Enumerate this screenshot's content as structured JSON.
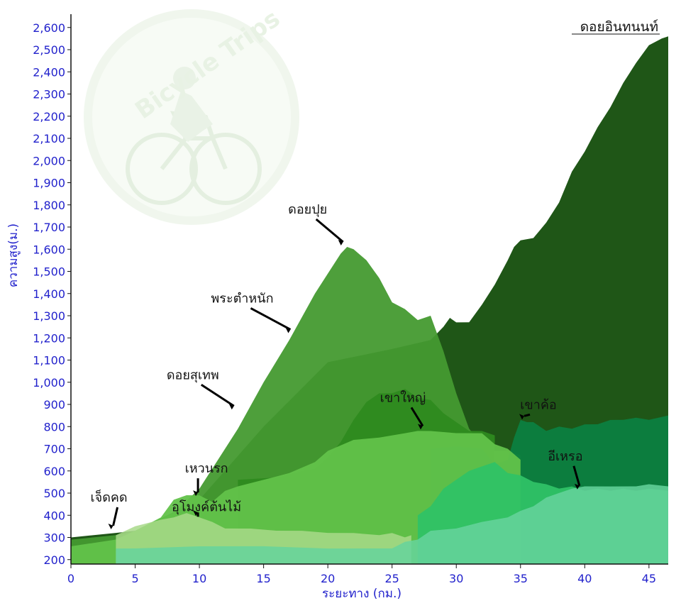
{
  "chart_data": {
    "type": "area",
    "title": "ดอยอินทนนท์",
    "xlabel": "ระยะทาง (กม.)",
    "ylabel": "ความสูง(ม.)",
    "xlim": [
      0,
      46.5
    ],
    "ylim": [
      180,
      2660
    ],
    "xticks": [
      0,
      5,
      10,
      15,
      20,
      25,
      30,
      35,
      40,
      45
    ],
    "yticks": [
      200,
      300,
      400,
      500,
      600,
      700,
      800,
      900,
      1000,
      1100,
      1200,
      1300,
      1400,
      1500,
      1600,
      1700,
      1800,
      1900,
      2000,
      2100,
      2200,
      2300,
      2400,
      2500,
      2600
    ],
    "watermark": "Bicycle Trips",
    "series": [
      {
        "color": "#134d0b",
        "x": [
          0,
          3.5,
          5,
          10,
          15,
          20,
          25,
          28,
          29,
          29.5,
          30,
          31,
          32,
          33,
          34,
          34.5,
          35,
          36,
          37,
          38,
          39,
          40,
          41,
          42,
          43,
          44,
          45,
          46,
          46.5
        ],
        "y": [
          300,
          330,
          330,
          480,
          800,
          1100,
          1150,
          1200,
          1250,
          1300,
          1270,
          1280,
          1350,
          1450,
          1550,
          1620,
          1640,
          1660,
          1720,
          1820,
          1950,
          2050,
          2150,
          2250,
          2350,
          2450,
          2520,
          2560,
          2560
        ]
      },
      {
        "color": "#449a30",
        "x": [
          0,
          3.5,
          5,
          8,
          10,
          13,
          15,
          17,
          19,
          20,
          21,
          21.5,
          22,
          23,
          24,
          25,
          26,
          27,
          28,
          29,
          30,
          31,
          32,
          33,
          34,
          35
        ],
        "y": [
          290,
          320,
          330,
          420,
          520,
          800,
          1000,
          1200,
          1400,
          1500,
          1580,
          1620,
          1600,
          1560,
          1470,
          1370,
          1330,
          1290,
          1300,
          1150,
          950,
          800,
          720,
          700,
          690,
          680
        ]
      },
      {
        "color": "#2e8a1f",
        "x": [
          13,
          16,
          18,
          19,
          20,
          21,
          22,
          23,
          24,
          25,
          26,
          27,
          28,
          29,
          30,
          31,
          32,
          33
        ],
        "y": [
          560,
          580,
          600,
          620,
          660,
          740,
          830,
          920,
          950,
          960,
          970,
          940,
          920,
          870,
          820,
          790,
          780,
          770
        ]
      },
      {
        "color": "#0c7f40",
        "x": [
          28,
          30,
          32,
          33,
          34,
          34.5,
          35,
          35.5,
          36,
          37,
          38,
          39,
          40,
          41,
          42,
          43,
          44,
          45,
          46.5
        ],
        "y": [
          700,
          720,
          700,
          640,
          650,
          760,
          830,
          830,
          820,
          790,
          800,
          800,
          810,
          820,
          830,
          840,
          840,
          840,
          850
        ]
      },
      {
        "color": "#62c24a",
        "x": [
          0,
          3.5,
          5,
          7,
          8,
          9,
          10,
          11,
          12,
          13,
          15,
          17,
          19,
          20,
          22,
          24,
          26,
          27,
          28,
          30,
          32,
          33,
          34,
          35
        ],
        "y": [
          260,
          300,
          330,
          400,
          470,
          500,
          490,
          470,
          510,
          540,
          560,
          600,
          640,
          700,
          740,
          760,
          770,
          790,
          780,
          780,
          770,
          730,
          700,
          660
        ]
      },
      {
        "color": "#2fc266",
        "x": [
          27,
          28,
          29,
          30,
          31,
          32,
          33,
          34,
          35,
          36,
          37,
          38,
          39,
          40,
          41,
          42,
          43,
          44,
          45,
          46.5
        ],
        "y": [
          400,
          450,
          520,
          570,
          600,
          630,
          640,
          600,
          580,
          560,
          540,
          530,
          530,
          520,
          520,
          520,
          520,
          520,
          520,
          520
        ]
      },
      {
        "color": "#a8d98a",
        "x": [
          3.5,
          5,
          7,
          8,
          9,
          10,
          11,
          12,
          14,
          16,
          18,
          20,
          22,
          24,
          25,
          26,
          26.5
        ],
        "y": [
          310,
          360,
          380,
          400,
          410,
          400,
          370,
          350,
          340,
          340,
          330,
          330,
          320,
          320,
          320,
          310,
          310
        ]
      },
      {
        "color": "#66d49c",
        "x": [
          3.5,
          5,
          10,
          15,
          20,
          25,
          26,
          27,
          28,
          30,
          32,
          34,
          35,
          36,
          37,
          38,
          39,
          40,
          42,
          44,
          45,
          46.5
        ],
        "y": [
          250,
          260,
          260,
          270,
          250,
          260,
          280,
          300,
          330,
          350,
          370,
          400,
          420,
          450,
          480,
          510,
          520,
          540,
          530,
          540,
          540,
          540
        ]
      }
    ],
    "annotations": [
      {
        "label": "เจ็ดคด",
        "x": 3.4,
        "y": 340
      },
      {
        "label": "อุโมงค์ต้นไม้",
        "x": 10.0,
        "y": 400
      },
      {
        "label": "เหวนรก",
        "x": 10.0,
        "y": 490
      },
      {
        "label": "ดอยสุเทพ",
        "x": 12.8,
        "y": 880
      },
      {
        "label": "พระตำหนัก",
        "x": 17.2,
        "y": 1225
      },
      {
        "label": "ดอยปุย",
        "x": 21.3,
        "y": 1620
      },
      {
        "label": "เขาใหญ่",
        "x": 27.5,
        "y": 790
      },
      {
        "label": "เขาค้อ",
        "x": 35.4,
        "y": 835
      },
      {
        "label": "อีเหรอ",
        "x": 39.7,
        "y": 520
      }
    ]
  }
}
